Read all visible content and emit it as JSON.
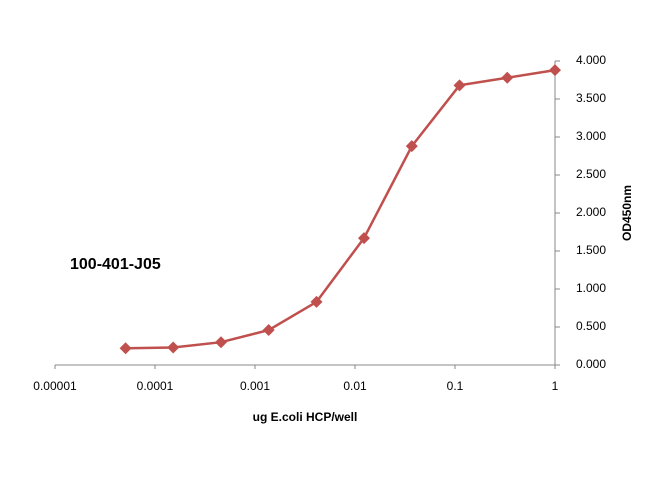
{
  "chart_data": {
    "type": "line",
    "annotation": "100-401-J05",
    "x_label": "ug E.coli HCP/well",
    "y_label": "OD450nm",
    "x_scale": "log",
    "y_axis_side": "right",
    "x": [
      5.08e-05,
      0.000152,
      0.000457,
      0.00137,
      0.00412,
      0.0123,
      0.037,
      0.111,
      0.333,
      1
    ],
    "series": [
      {
        "color": "#c0504d",
        "marker": "diamond",
        "values": [
          0.22,
          0.23,
          0.3,
          0.46,
          0.83,
          1.67,
          2.88,
          3.68,
          3.78,
          3.88
        ]
      }
    ],
    "xlim": [
      1e-05,
      1
    ],
    "xticks": [
      {
        "value": 1e-05,
        "label": "0.00001"
      },
      0.0001,
      0.001,
      0.01,
      0.1,
      1
    ],
    "ylim": [
      0,
      4
    ],
    "yticks": [
      {
        "value": 0,
        "label": "0.000"
      },
      {
        "value": 0.5,
        "label": "0.500"
      },
      {
        "value": 1,
        "label": "1.000"
      },
      {
        "value": 1.5,
        "label": "1.500"
      },
      {
        "value": 2,
        "label": "2.000"
      },
      {
        "value": 2.5,
        "label": "2.500"
      },
      {
        "value": 3,
        "label": "3.000"
      },
      {
        "value": 3.5,
        "label": "3.500"
      },
      {
        "value": 4,
        "label": "4.000"
      }
    ],
    "grid": false
  }
}
